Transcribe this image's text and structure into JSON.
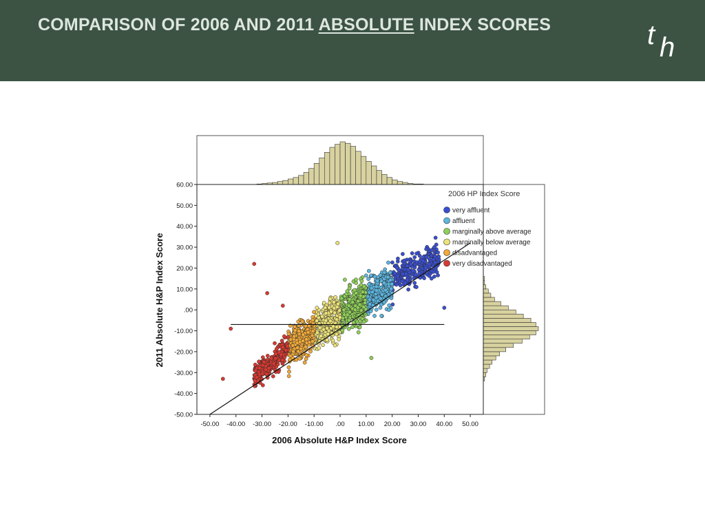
{
  "header": {
    "title_pre": "COMPARISON OF 2006 AND 2011 ",
    "title_em": "ABSOLUTE",
    "title_post": " INDEX SCORES",
    "logo_t": "t",
    "logo_h": "h",
    "background": "#3c5343",
    "text_color": "#dde6de"
  },
  "chart_data": {
    "type": "scatter",
    "title": "",
    "xlabel": "2006 Absolute H&P Index Score",
    "ylabel": "2011 Absolute H&P Index Score",
    "xlim": [
      -55,
      55
    ],
    "ylim": [
      -50,
      60
    ],
    "x_ticks": [
      "-50.00",
      "-40.00",
      "-30.00",
      "-20.00",
      "-10.00",
      ".00",
      "10.00",
      "20.00",
      "30.00",
      "40.00",
      "50.00"
    ],
    "y_ticks": [
      "60.00",
      "50.00",
      "40.00",
      "30.00",
      "20.00",
      "10.00",
      ".00",
      "-10.00",
      "-20.00",
      "-30.00",
      "-40.00",
      "-50.00"
    ],
    "legend_title": "2006 HP Index Score",
    "legend_position": "top-right",
    "series": [
      {
        "name": "very affluent",
        "color": "#3a4fd0",
        "x_range": [
          20,
          38
        ],
        "y_center_at_x20": 15,
        "slope": 0.55,
        "spread": 6,
        "count": 260
      },
      {
        "name": "affluent",
        "color": "#5cb6e0",
        "x_range": [
          10,
          20
        ],
        "y_center_at_x10": 5,
        "slope": 0.7,
        "spread": 7,
        "count": 300
      },
      {
        "name": "marginally above average",
        "color": "#8fcf5a",
        "x_range": [
          0,
          10
        ],
        "y_center_at_x0": -2,
        "slope": 0.7,
        "spread": 8,
        "count": 340
      },
      {
        "name": "marginally below average",
        "color": "#ece27a",
        "x_range": [
          -10,
          0
        ],
        "y_center_at_x-10": -10,
        "slope": 0.7,
        "spread": 8,
        "count": 340
      },
      {
        "name": "disadvantaged",
        "color": "#f0a93a",
        "x_range": [
          -20,
          -10
        ],
        "y_center_at_x-20": -18,
        "slope": 0.8,
        "spread": 7,
        "count": 300
      },
      {
        "name": "very disadvantaged",
        "color": "#d93a32",
        "x_range": [
          -33,
          -20
        ],
        "y_center_at_x-33": -32,
        "slope": 1.0,
        "spread": 5,
        "count": 230
      }
    ],
    "reference_lines": [
      {
        "kind": "horizontal",
        "y": -7,
        "x_from": -42,
        "x_to": 40
      },
      {
        "kind": "diagonal",
        "from": [
          -50,
          -50
        ],
        "to": [
          50,
          32
        ]
      }
    ],
    "marginal_x_histogram": {
      "bin_width": 2,
      "start": -32,
      "counts": [
        1,
        2,
        3,
        4,
        6,
        8,
        11,
        14,
        18,
        24,
        32,
        42,
        53,
        64,
        74,
        80,
        85,
        82,
        76,
        66,
        56,
        46,
        37,
        28,
        20,
        14,
        9,
        6,
        4,
        2,
        1,
        1
      ]
    },
    "marginal_y_histogram": {
      "bin_width": 2,
      "start": -34,
      "counts": [
        1,
        2,
        3,
        5,
        7,
        10,
        13,
        18,
        24,
        31,
        37,
        42,
        44,
        42,
        38,
        32,
        26,
        20,
        14,
        9,
        6,
        4,
        2,
        1,
        1
      ]
    }
  }
}
